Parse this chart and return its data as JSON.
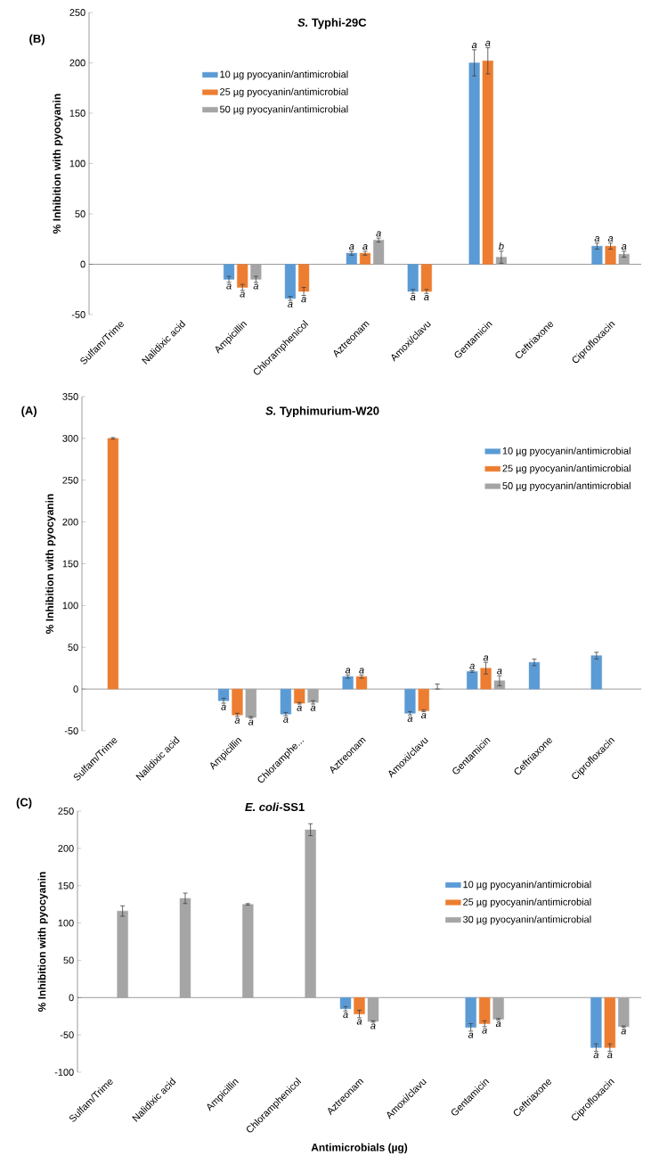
{
  "chart_data": [
    {
      "type": "bar",
      "title": "*S.* Typhi-29C",
      "ylabel": "% Inhibition with pyocyanin",
      "annotations": [
        "(B)"
      ],
      "legend": "top left",
      "categories": [
        "Sulfam/Trime",
        "Nalidixic acid",
        "Ampicillin",
        "Chloramphenicol",
        "Aztreonam",
        "Amoxi/clavu",
        "Gentamicin",
        "Ceftriaxone",
        "Ciprofloxacin"
      ],
      "ylim": [
        -50,
        250
      ],
      "yticks": [
        -50,
        0,
        50,
        100,
        150,
        200,
        250
      ],
      "series": [
        {
          "name": "10 µg pyocyanin/antimicrobial",
          "color": "#5b9bd5",
          "values": [
            null,
            null,
            -15,
            -34,
            11,
            -27,
            200,
            null,
            18
          ],
          "errors": [
            null,
            null,
            3,
            2,
            2,
            2,
            13,
            null,
            3
          ],
          "value_labels": [
            null,
            null,
            "a",
            "a",
            "a",
            "a",
            "a",
            null,
            "a"
          ]
        },
        {
          "name": "25 µg pyocyanin/antimicrobial",
          "color": "#ed7d31",
          "values": [
            null,
            null,
            -23,
            -27,
            11,
            -27,
            202,
            null,
            18
          ],
          "errors": [
            null,
            null,
            3,
            4,
            2,
            2,
            13,
            null,
            3
          ],
          "value_labels": [
            null,
            null,
            "a",
            "a",
            "a",
            "a",
            "a",
            null,
            "a"
          ]
        },
        {
          "name": "50 µg pyocyanin/antimicrobial",
          "color": "#a5a5a5",
          "values": [
            null,
            null,
            -15,
            null,
            24,
            null,
            7,
            null,
            10
          ],
          "errors": [
            null,
            null,
            3,
            null,
            2,
            null,
            6,
            null,
            3
          ],
          "value_labels": [
            null,
            null,
            "a",
            null,
            "a",
            null,
            "b",
            null,
            "a"
          ]
        }
      ]
    },
    {
      "type": "bar",
      "title": "*S.* Typhimurium-W20",
      "ylabel": "% Inhibition with pyocyanin",
      "annotations": [
        "(A)"
      ],
      "legend": "top right",
      "categories": [
        "Sulfam/Trime",
        "Nalidixic acid",
        "Ampicillin",
        "Chloramphe...",
        "Aztreonam",
        "Amoxi/clavu",
        "Gentamicin",
        "Ceftriaxone",
        "Ciprofloxacin"
      ],
      "ylim": [
        -50,
        350
      ],
      "yticks": [
        -50,
        0,
        50,
        100,
        150,
        200,
        250,
        300,
        350
      ],
      "series": [
        {
          "name": "10 µg pyocyanin/antimicrobial",
          "color": "#5b9bd5",
          "values": [
            null,
            null,
            -14,
            -30,
            15,
            -29,
            21,
            32,
            40
          ],
          "errors": [
            null,
            null,
            3,
            2,
            2,
            2,
            1,
            4,
            4
          ],
          "value_labels": [
            null,
            null,
            "a",
            "a",
            "a",
            "a",
            "a",
            null,
            null
          ]
        },
        {
          "name": "25 µg pyocyanin/antimicrobial",
          "color": "#ed7d31",
          "values": [
            300,
            null,
            -31,
            -17,
            15,
            -26,
            25,
            null,
            null
          ],
          "errors": [
            1,
            null,
            2,
            1,
            2,
            1,
            7,
            null,
            null
          ],
          "value_labels": [
            null,
            null,
            "a",
            "a",
            "a",
            "a",
            "a",
            null,
            null
          ]
        },
        {
          "name": "50 µg pyocyanin/antimicrobial",
          "color": "#a5a5a5",
          "values": [
            null,
            null,
            -34,
            -16,
            null,
            0,
            10,
            null,
            null
          ],
          "errors": [
            null,
            null,
            1,
            2,
            null,
            [
              0,
              6
            ],
            6,
            null,
            null
          ],
          "value_labels": [
            null,
            null,
            "a",
            "a",
            null,
            null,
            "a",
            null,
            null
          ]
        }
      ]
    },
    {
      "type": "bar",
      "title": "*E. coli*-SS1",
      "ylabel": "% Inhibition with pyocyanin",
      "xlabel": "Antimicrobials (µg)",
      "annotations": [
        "(C)"
      ],
      "legend": "right",
      "categories": [
        "Sulfam/Trime",
        "Nalidixic acid",
        "Ampicillin",
        "Chloramphenicol",
        "Aztreonam",
        "Amoxi/clavu",
        "Gentamicin",
        "Ceftriaxone",
        "Ciprofloxacin"
      ],
      "ylim": [
        -100,
        250
      ],
      "yticks": [
        -100,
        -50,
        0,
        50,
        100,
        150,
        200,
        250
      ],
      "series": [
        {
          "name": "10 µg pyocyanin/antimicrobial",
          "color": "#5b9bd5",
          "values": [
            null,
            null,
            null,
            null,
            -15,
            null,
            -40,
            null,
            -67
          ],
          "errors": [
            null,
            null,
            null,
            null,
            3,
            null,
            5,
            null,
            5
          ],
          "value_labels": [
            null,
            null,
            null,
            null,
            "a",
            null,
            "a",
            null,
            "a"
          ]
        },
        {
          "name": "25 µg pyocyanin/antimicrobial",
          "color": "#ed7d31",
          "values": [
            null,
            null,
            null,
            null,
            -22,
            null,
            -35,
            null,
            -67
          ],
          "errors": [
            null,
            null,
            null,
            null,
            5,
            null,
            4,
            null,
            5
          ],
          "value_labels": [
            null,
            null,
            null,
            null,
            "a",
            null,
            "a",
            null,
            "a"
          ]
        },
        {
          "name": "30 µg pyocyanin/antimicrobial",
          "color": "#a5a5a5",
          "values": [
            116,
            133,
            125,
            225,
            -32,
            null,
            -29,
            null,
            -39
          ],
          "errors": [
            7,
            7,
            1,
            8,
            1,
            null,
            1,
            null,
            1
          ],
          "value_labels": [
            null,
            null,
            null,
            null,
            "a",
            null,
            "a",
            null,
            "a"
          ]
        }
      ]
    }
  ]
}
